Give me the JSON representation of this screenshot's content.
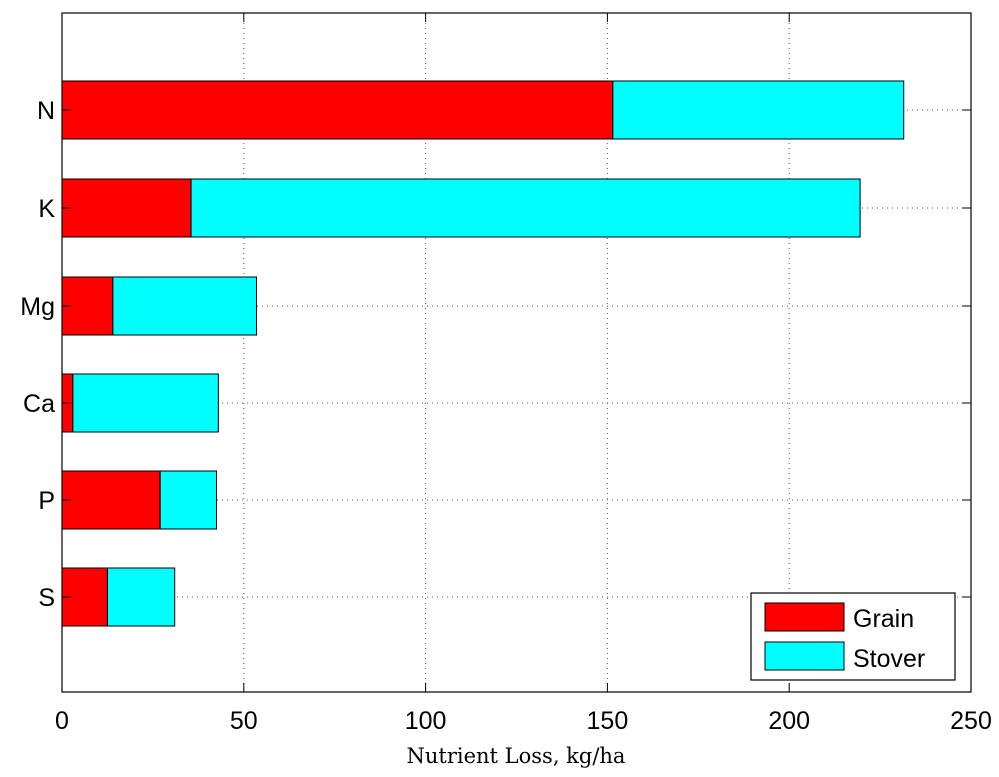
{
  "chart_data": {
    "type": "bar",
    "orientation": "horizontal",
    "stacked": true,
    "categories": [
      "N",
      "K",
      "Mg",
      "Ca",
      "P",
      "S"
    ],
    "series": [
      {
        "name": "Grain",
        "values": [
          151.5,
          35.5,
          14,
          3,
          27,
          12.5
        ],
        "color": "#ff0000"
      },
      {
        "name": "Stover",
        "values": [
          80,
          184,
          39.5,
          40,
          15.5,
          18.5
        ],
        "color": "#00ffff"
      }
    ],
    "xlabel": "Nutrient Loss, kg/ha",
    "ylabel": "",
    "title": "",
    "xlim": [
      0,
      250
    ],
    "xticks": [
      "0",
      "50",
      "100",
      "150",
      "200",
      "250"
    ],
    "grid": true,
    "legend_position": "bottom-right"
  }
}
